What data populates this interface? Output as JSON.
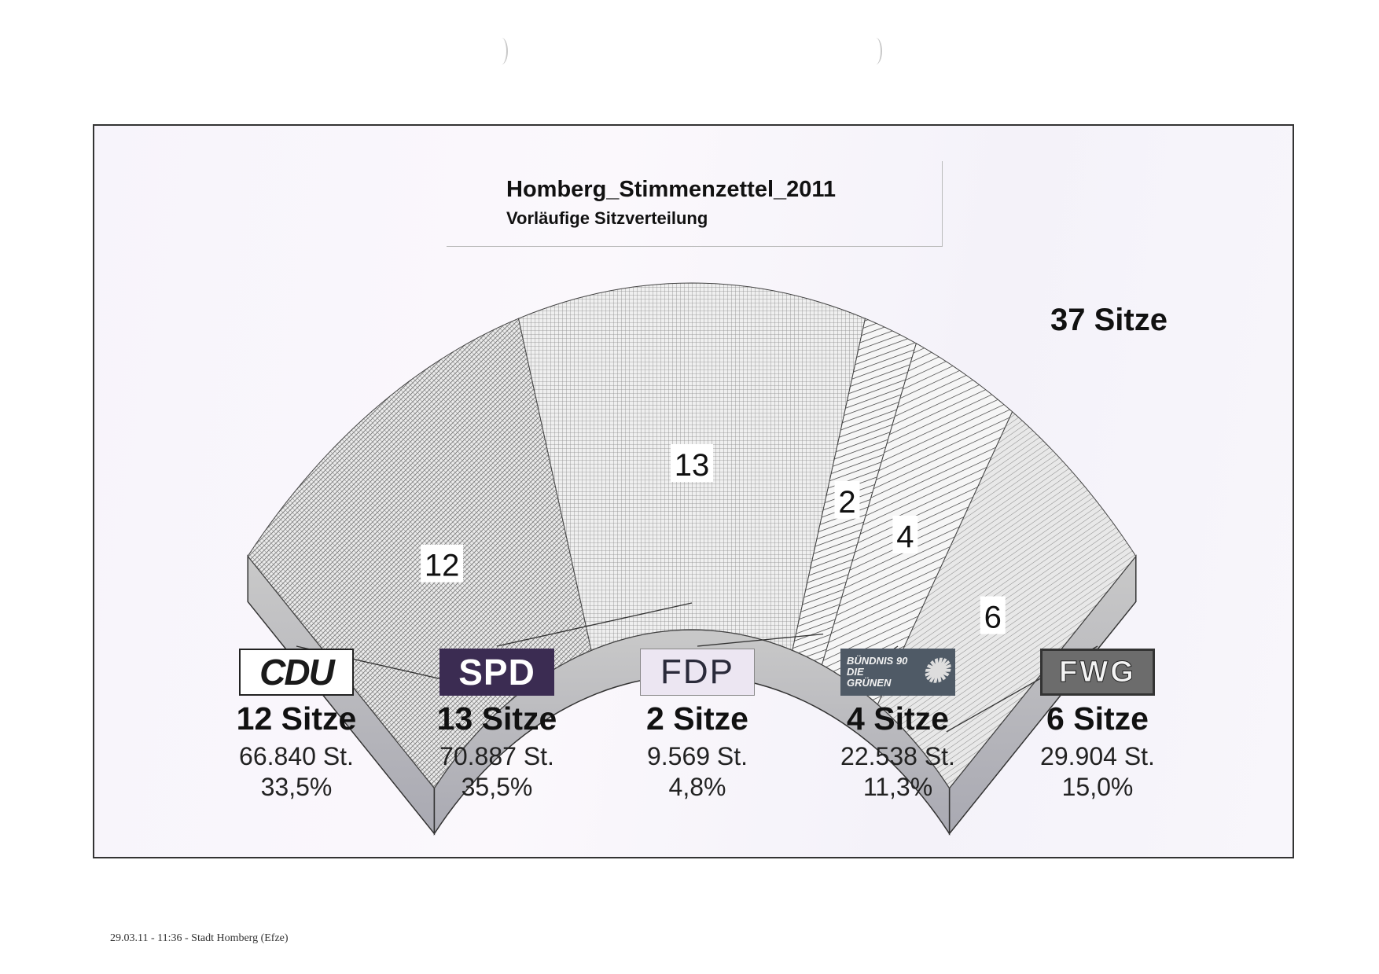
{
  "header": {
    "title": "Homberg_Stimmenzettel_2011",
    "subtitle": "Vorläufige Sitzverteilung"
  },
  "total_seats_label": "37 Sitze",
  "chart_data": {
    "type": "pie",
    "title": "Homberg_Stimmenzettel_2011",
    "subtitle": "Vorläufige Sitzverteilung",
    "total_seats": 37,
    "categories": [
      "CDU",
      "SPD",
      "FDP",
      "BÜNDNIS 90 DIE GRÜNEN",
      "FWG"
    ],
    "values": [
      12,
      13,
      2,
      4,
      6
    ],
    "votes": [
      66840,
      70887,
      9569,
      22538,
      29904
    ],
    "percent": [
      33.5,
      35.5,
      4.8,
      11.3,
      15.0
    ],
    "segment_labels": [
      "12",
      "13",
      "2",
      "4",
      "6"
    ]
  },
  "parties": [
    {
      "logo": "CDU",
      "seats": "12 Sitze",
      "votes": "66.840 St.",
      "percent": "33,5%"
    },
    {
      "logo": "SPD",
      "seats": "13 Sitze",
      "votes": "70.887 St.",
      "percent": "35,5%"
    },
    {
      "logo": "FDP",
      "seats": "2 Sitze",
      "votes": "9.569 St.",
      "percent": "4,8%"
    },
    {
      "logo": "BÜNDNIS 90 DIE GRÜNEN",
      "seats": "4 Sitze",
      "votes": "22.538 St.",
      "percent": "11,3%"
    },
    {
      "logo": "FWG",
      "seats": "6 Sitze",
      "votes": "29.904 St.",
      "percent": "15,0%"
    }
  ],
  "footer": "29.03.11 - 11:36 - Stadt Homberg (Efze)"
}
